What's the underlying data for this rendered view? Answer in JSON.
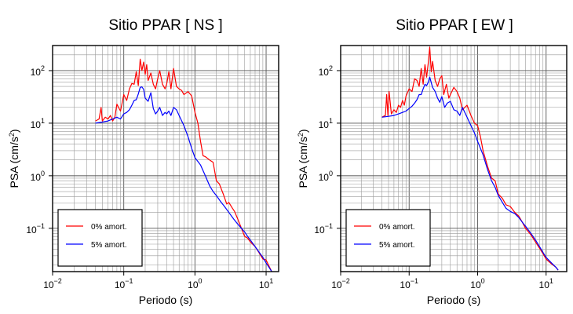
{
  "chart_data": [
    {
      "type": "line",
      "title": "Sitio PPAR [ NS ]",
      "xlabel": "Periodo (s)",
      "ylabel": "PSA (cm/s²)",
      "xscale": "log",
      "yscale": "log",
      "xlim": [
        0.01,
        15
      ],
      "ylim": [
        0.015,
        300
      ],
      "xticks": [
        {
          "base": "10",
          "exp": "−2"
        },
        {
          "base": "10",
          "exp": "−1"
        },
        {
          "base": "10",
          "exp": "0"
        },
        {
          "base": "10",
          "exp": "1"
        }
      ],
      "yticks": [
        {
          "base": "10",
          "exp": "−1"
        },
        {
          "base": "10",
          "exp": "0"
        },
        {
          "base": "10",
          "exp": "1"
        },
        {
          "base": "10",
          "exp": "2"
        }
      ],
      "grid": true,
      "legend_position": "bottom-left",
      "series": [
        {
          "name": "0% amort.",
          "color": "#ff0000",
          "x": [
            0.04,
            0.045,
            0.048,
            0.05,
            0.055,
            0.06,
            0.065,
            0.07,
            0.075,
            0.08,
            0.09,
            0.1,
            0.11,
            0.12,
            0.13,
            0.14,
            0.15,
            0.16,
            0.17,
            0.18,
            0.19,
            0.2,
            0.21,
            0.22,
            0.24,
            0.26,
            0.28,
            0.3,
            0.32,
            0.35,
            0.38,
            0.4,
            0.43,
            0.46,
            0.5,
            0.55,
            0.6,
            0.65,
            0.7,
            0.8,
            0.9,
            1.0,
            1.1,
            1.2,
            1.3,
            1.4,
            1.6,
            1.8,
            2.0,
            2.2,
            2.5,
            2.8,
            3.0,
            3.3,
            3.6,
            4.0,
            4.5,
            5.0,
            5.5,
            6.0,
            7.0,
            8.0,
            9.0,
            10.0,
            11.0,
            12.0
          ],
          "y": [
            11,
            12,
            20,
            11,
            13,
            12,
            14,
            11,
            13,
            23,
            17,
            35,
            27,
            45,
            57,
            55,
            95,
            52,
            165,
            100,
            145,
            85,
            130,
            65,
            90,
            55,
            45,
            70,
            100,
            55,
            45,
            55,
            95,
            45,
            110,
            50,
            45,
            42,
            35,
            40,
            33,
            16,
            10,
            4.5,
            2.4,
            2.3,
            2.0,
            1.8,
            0.8,
            0.7,
            0.45,
            0.29,
            0.31,
            0.25,
            0.21,
            0.15,
            0.1,
            0.07,
            0.065,
            0.055,
            0.045,
            0.034,
            0.026,
            0.025,
            0.019,
            0.015
          ]
        },
        {
          "name": "5% amort.",
          "color": "#0000ff",
          "x": [
            0.04,
            0.05,
            0.06,
            0.07,
            0.08,
            0.09,
            0.1,
            0.11,
            0.12,
            0.13,
            0.14,
            0.15,
            0.16,
            0.17,
            0.18,
            0.19,
            0.2,
            0.22,
            0.24,
            0.26,
            0.28,
            0.3,
            0.32,
            0.35,
            0.38,
            0.4,
            0.43,
            0.46,
            0.5,
            0.55,
            0.6,
            0.7,
            0.8,
            0.9,
            1.0,
            1.2,
            1.4,
            1.6,
            1.8,
            2.0,
            2.3,
            2.6,
            3.0,
            3.5,
            4.0,
            4.5,
            5.0,
            5.5,
            6.0,
            7.0,
            8.0,
            9.0,
            10.0,
            11.0,
            12.0
          ],
          "y": [
            10,
            10.5,
            11,
            12,
            13,
            12,
            15,
            16,
            18,
            22,
            27,
            28,
            36,
            48,
            49,
            44,
            30,
            26,
            38,
            19,
            15,
            17,
            20,
            14,
            16,
            15,
            17,
            14,
            20,
            18,
            14,
            9,
            5.5,
            3.3,
            2.2,
            1.6,
            1.0,
            0.65,
            0.5,
            0.42,
            0.32,
            0.26,
            0.2,
            0.15,
            0.12,
            0.1,
            0.085,
            0.07,
            0.06,
            0.045,
            0.035,
            0.028,
            0.022,
            0.018,
            0.015
          ]
        }
      ]
    },
    {
      "type": "line",
      "title": "Sitio PPAR [ EW ]",
      "xlabel": "Periodo (s)",
      "ylabel": "PSA (cm/s²)",
      "xscale": "log",
      "yscale": "log",
      "xlim": [
        0.01,
        20
      ],
      "ylim": [
        0.015,
        300
      ],
      "xticks": [
        {
          "base": "10",
          "exp": "−2"
        },
        {
          "base": "10",
          "exp": "−1"
        },
        {
          "base": "10",
          "exp": "0"
        },
        {
          "base": "10",
          "exp": "1"
        }
      ],
      "yticks": [
        {
          "base": "10",
          "exp": "−1"
        },
        {
          "base": "10",
          "exp": "0"
        },
        {
          "base": "10",
          "exp": "1"
        },
        {
          "base": "10",
          "exp": "2"
        }
      ],
      "grid": true,
      "legend_position": "bottom-left",
      "series": [
        {
          "name": "0% amort.",
          "color": "#ff0000",
          "x": [
            0.04,
            0.045,
            0.047,
            0.049,
            0.051,
            0.055,
            0.06,
            0.065,
            0.07,
            0.075,
            0.08,
            0.085,
            0.09,
            0.1,
            0.11,
            0.12,
            0.13,
            0.14,
            0.15,
            0.16,
            0.17,
            0.18,
            0.19,
            0.2,
            0.21,
            0.22,
            0.24,
            0.26,
            0.28,
            0.3,
            0.32,
            0.35,
            0.38,
            0.4,
            0.45,
            0.5,
            0.55,
            0.6,
            0.7,
            0.8,
            0.9,
            1.0,
            1.1,
            1.2,
            1.4,
            1.6,
            1.8,
            2.0,
            2.3,
            2.6,
            3.0,
            3.5,
            4.0,
            4.5,
            5.0,
            6.0,
            7.0,
            8.0,
            9.0,
            10.0,
            12.0,
            14.0,
            15.0
          ],
          "y": [
            13,
            14,
            35,
            14,
            40,
            15,
            18,
            16,
            22,
            20,
            27,
            22,
            33,
            45,
            40,
            70,
            65,
            50,
            110,
            55,
            130,
            75,
            140,
            280,
            95,
            150,
            65,
            50,
            70,
            80,
            35,
            55,
            30,
            35,
            48,
            40,
            30,
            18,
            22,
            14,
            10,
            9,
            5.5,
            3.0,
            1.5,
            0.9,
            0.8,
            0.45,
            0.37,
            0.28,
            0.26,
            0.2,
            0.17,
            0.13,
            0.1,
            0.075,
            0.055,
            0.042,
            0.033,
            0.026,
            0.021,
            0.018,
            0.016
          ]
        },
        {
          "name": "5% amort.",
          "color": "#0000ff",
          "x": [
            0.04,
            0.05,
            0.06,
            0.07,
            0.08,
            0.09,
            0.1,
            0.11,
            0.12,
            0.13,
            0.14,
            0.15,
            0.16,
            0.17,
            0.18,
            0.19,
            0.2,
            0.22,
            0.24,
            0.26,
            0.28,
            0.3,
            0.33,
            0.36,
            0.4,
            0.45,
            0.5,
            0.55,
            0.6,
            0.7,
            0.8,
            0.9,
            1.0,
            1.2,
            1.4,
            1.6,
            1.8,
            2.0,
            2.3,
            2.6,
            3.0,
            3.5,
            4.0,
            4.5,
            5.0,
            6.0,
            7.0,
            8.0,
            9.0,
            10.0,
            12.0,
            14.0,
            15.0
          ],
          "y": [
            13,
            13.5,
            14,
            15,
            16,
            17,
            19,
            21,
            24,
            28,
            35,
            35,
            45,
            55,
            52,
            60,
            75,
            48,
            40,
            30,
            25,
            32,
            20,
            24,
            26,
            18,
            17,
            14,
            20,
            13,
            9,
            6.5,
            4.5,
            2.5,
            1.3,
            0.8,
            0.6,
            0.42,
            0.31,
            0.24,
            0.21,
            0.19,
            0.16,
            0.13,
            0.11,
            0.08,
            0.06,
            0.045,
            0.035,
            0.028,
            0.022,
            0.018,
            0.016
          ]
        }
      ]
    }
  ]
}
